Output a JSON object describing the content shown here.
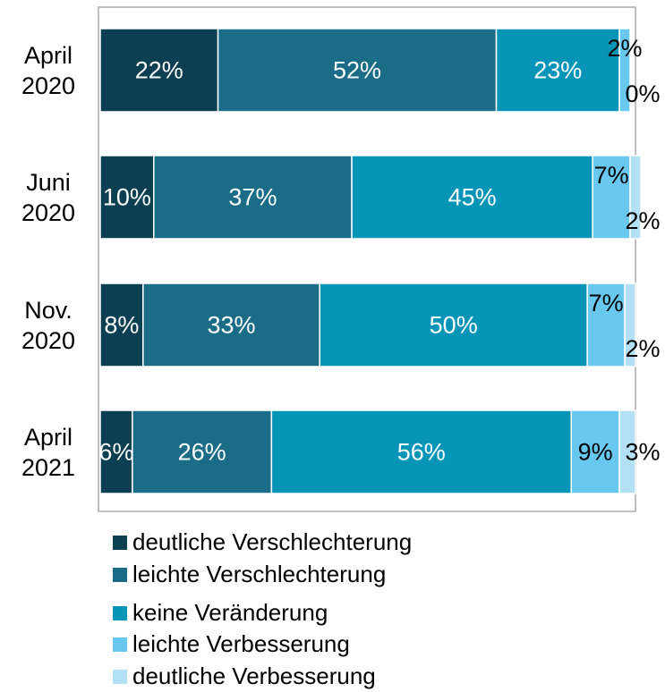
{
  "chart_data": {
    "type": "stacked-bar-horizontal",
    "categories": [
      "April 2020",
      "Juni 2020",
      "Nov. 2020",
      "April 2021"
    ],
    "series": [
      {
        "name": "deutliche Verschlechterung",
        "color": "#0d3f52",
        "values": [
          22,
          10,
          8,
          6
        ]
      },
      {
        "name": "leichte Verschlechterung",
        "color": "#1a6c87",
        "values": [
          52,
          37,
          33,
          26
        ]
      },
      {
        "name": "keine Veränderung",
        "color": "#0795b7",
        "values": [
          23,
          45,
          50,
          56
        ]
      },
      {
        "name": "leichte Verbesserung",
        "color": "#69c8ef",
        "values": [
          2,
          7,
          7,
          9
        ]
      },
      {
        "name": "deutliche Verbesserung",
        "color": "#b3e0f5",
        "values": [
          0,
          2,
          2,
          3
        ]
      }
    ],
    "value_labels": [
      [
        "22%",
        "10%",
        "8%",
        "6%"
      ],
      [
        "52%",
        "37%",
        "33%",
        "26%"
      ],
      [
        "23%",
        "45%",
        "50%",
        "56%"
      ],
      [
        "2%",
        "7%",
        "7%",
        "9%"
      ],
      [
        "0%",
        "2%",
        "2%",
        "3%"
      ]
    ],
    "xlim": [
      0,
      100
    ]
  }
}
